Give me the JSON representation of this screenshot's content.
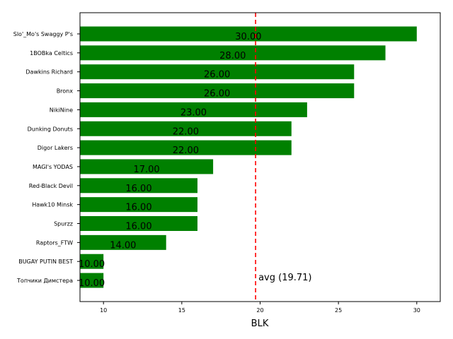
{
  "chart_data": {
    "type": "bar",
    "orientation": "horizontal",
    "categories": [
      "Slo'_Mo's Swaggy P's",
      "1BOBka Celtics",
      "Dawkins Richard",
      "Bronx",
      "NikiNine",
      "Dunking Donuts",
      "Digor Lakers",
      "MAGI's YODAS",
      "Red-Black Devil",
      "Hawk10 Minsk",
      "Spurzz",
      "Raptors_FTW",
      "BUGAY PUTIN BEST",
      "Топчики Димстера"
    ],
    "values": [
      30,
      28,
      26,
      26,
      23,
      22,
      22,
      17,
      16,
      16,
      16,
      14,
      10,
      10
    ],
    "value_labels": [
      "30.00",
      "28.00",
      "26.00",
      "26.00",
      "23.00",
      "22.00",
      "22.00",
      "17.00",
      "16.00",
      "16.00",
      "16.00",
      "14.00",
      "10.00",
      "10.00"
    ],
    "bar_color": "#008000",
    "xlabel": "BLK",
    "xlim": [
      8.5,
      31.5
    ],
    "xticks": [
      10,
      15,
      20,
      25,
      30
    ],
    "average": {
      "value": 19.71,
      "label": "avg (19.71)",
      "color": "#ff0000"
    },
    "grid": false
  }
}
